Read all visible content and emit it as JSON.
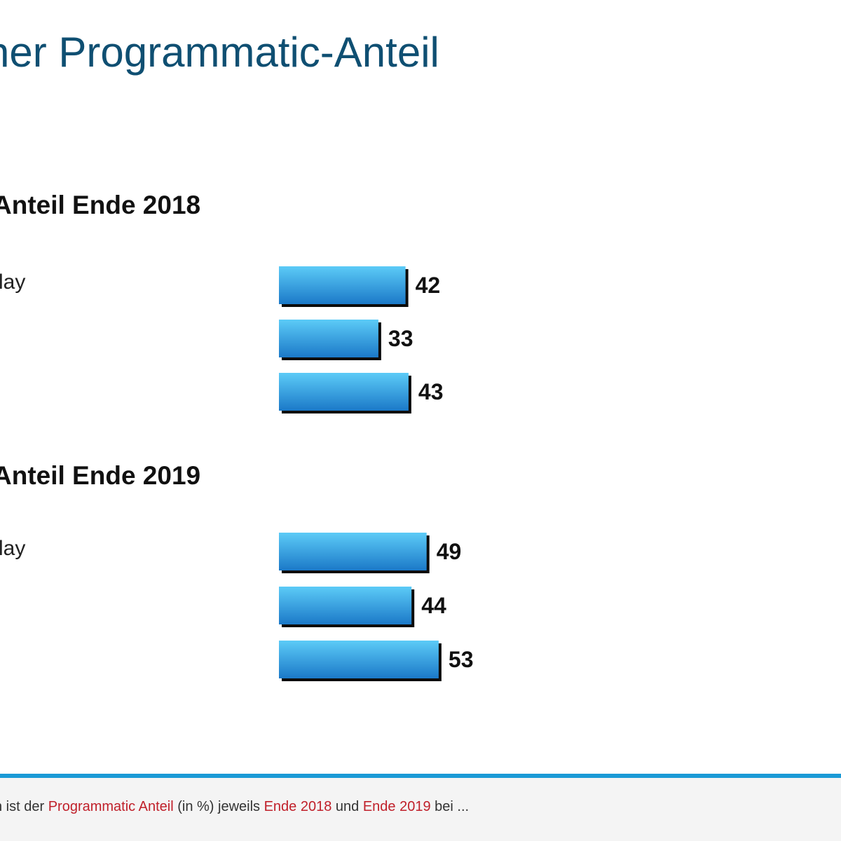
{
  "slide": {
    "title": "her Programmatic-Anteil"
  },
  "colors": {
    "bar_top": "#5ccbf7",
    "bar_bottom": "#1b79c8",
    "bar_shadow": "#0c0c0c",
    "title": "#0f4f72",
    "footer_rule": "#1a9ad6",
    "highlight": "#c0202a"
  },
  "chart_data": [
    {
      "type": "bar",
      "orientation": "horizontal",
      "title": "Anteil Ende 2018",
      "categories": [
        "lay",
        "",
        ""
      ],
      "values": [
        42,
        33,
        43
      ],
      "xlim": [
        0,
        100
      ]
    },
    {
      "type": "bar",
      "orientation": "horizontal",
      "title": "Anteil Ende 2019",
      "categories": [
        "lay",
        "",
        ""
      ],
      "values": [
        49,
        44,
        53
      ],
      "xlim": [
        0,
        100
      ]
    }
  ],
  "footnote": {
    "prefix": "n ist der ",
    "hl1": "Programmatic Anteil",
    "mid1": " (in %) jeweils ",
    "hl2": "Ende 2018",
    "mid2": " und ",
    "hl3": "Ende 2019",
    "suffix": " bei ..."
  }
}
